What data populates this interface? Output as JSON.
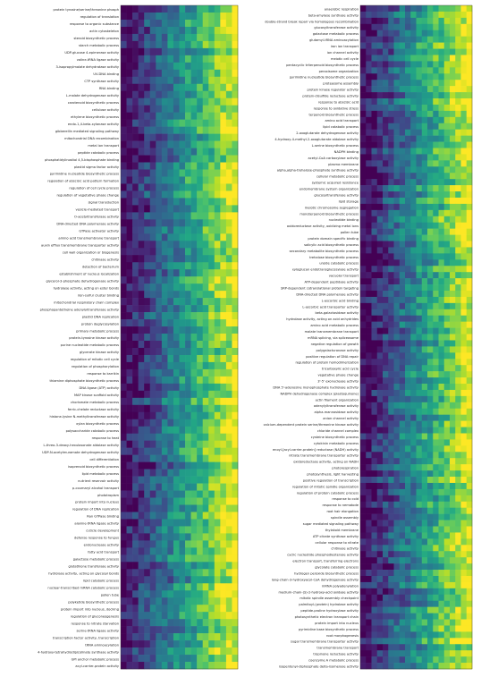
{
  "chart_data": [
    {
      "type": "heatmap",
      "title": "",
      "xlabel": "",
      "ylabel": "",
      "colormap": "viridis",
      "n_columns": 20,
      "rows": [
        "protein tyrosine/serine/threonine phosph",
        "regulation of translation",
        "response to organic substance",
        "actin cytoskeleton",
        "steroid biosynthetic process",
        "starch metabolic process",
        "UDP-glucose 4-epimerase activity",
        "valine-tRNA ligase activity",
        "3-isopropylmalate dehydratase activity",
        "UV-DNA binding",
        "CTP synthase activity",
        "RNA binding",
        "L-malate dehydrogenase activity",
        "carotenoid biosynthetic process",
        "cellulose activity",
        "ethylene biosynthetic process",
        "endo-1,4-beta-xylanase activity",
        "gibberellin mediated signaling pathway",
        "mitochondrial DNA recombination",
        "metal ion transport",
        "peptide catabolic process",
        "phosphatidylinositol 4,5-bisphosphate binding",
        "plastid sigma factor activity",
        "pyrimidine nucleotide biosynthetic process",
        "regulation of abscisic acid pattern formation",
        "regulation of cell cycle process",
        "regulation of vegetative phase change",
        "signal transduction",
        "vesicle-mediated transport",
        "O-acetyltransferase activity",
        "DNA-directed DNA polymerase activity",
        "GTPase activator activity",
        "amino acid transmembrane transport",
        "auxin efflux transmembrane transporter activity",
        "cell wall organization or biogenesis",
        "chitinase activity",
        "detection of bacterium",
        "establishment of nucleus localization",
        "glycerol-3-phosphate dehydrogenase activity",
        "hydrolase activity, acting on ester bonds",
        "iron-sulfur cluster binding",
        "mitochondrial respiratory chain complex",
        "phosphopantetheine adenylyltransferase activity",
        "plastid DNA replication",
        "protein deglycosylation",
        "primary metabolic process",
        "protein-tyrosine kinase activity",
        "purine nucleotide metabolic process",
        "glycerate kinase activity",
        "regulation of mitotic cell cycle",
        "regulation of phosphorylation",
        "response to karrikin",
        "thiamine diphosphate biosynthetic process",
        "DNA ligase (ATP) activity",
        "MAP kinase scaffold activity",
        "chorismate metabolic process",
        "ferric-chelate reductase activity",
        "histone-lysine N-methyltransferase activity",
        "xylan biosynthetic process",
        "polysaccharide catabolic process",
        "response to heat",
        "L-threo-3-deoxy-hexulosonate aldolase activity",
        "UDP-N-acetylmuramate dehydrogenase activity",
        "cell differentiation",
        "isoprenoid biosynthetic process",
        "lipid metabolic process",
        "nutrient reservoir activity",
        "p-coumaryl alcohol transport",
        "phototropism",
        "protein import into nucleus",
        "regulation of DNA replication",
        "Ran GTPase binding",
        "alanine-tRNA ligase activity",
        "cuticle development",
        "defense response to fungus",
        "endonuclease activity",
        "fatty acid transport",
        "galactose metabolic process",
        "glutathione transferase activity",
        "hydrolase activity, acting on glycosyl bonds",
        "lipid catabolic process",
        "nuclear-transcribed mRNA catabolic process",
        "pollen tube",
        "polyketide biosynthetic process",
        "protein import into nucleus, docking",
        "regulation of gluconeogenesis",
        "response to nitrate starvation",
        "serine-tRNA ligase activity",
        "transcription factor activity, transcription",
        "tRNA aminoacylation",
        "4-hydroxy-tetrahydrodipicolinate synthase activity",
        "GPI anchor metabolic process",
        "acyl-carrier-protein activity"
      ]
    },
    {
      "type": "heatmap",
      "title": "",
      "xlabel": "",
      "ylabel": "",
      "colormap": "viridis",
      "n_columns": 20,
      "rows": [
        "anaerobic respiration",
        "beta-amylase synthase activity",
        "double-strand break repair via homologous recombination",
        "glucosyltransferase activity",
        "galactose metabolic process",
        "glutamyl-tRNA aminoacylation",
        "iron ion transport",
        "ion channel activity",
        "meiotic cell cycle",
        "pentacyclic triterpenoid biosynthetic process",
        "peroxisome organization",
        "pyrimidine nucleotide biosynthetic process",
        "proteasome assembly",
        "protein kinase regulator activity",
        "protein-disulfide reductase activity",
        "response to abscisic acid",
        "response to oxidative stress",
        "terpenoid biosynthetic process",
        "amino acid transport",
        "lipid catabolic process",
        "2-oxoglutarate dehydrogenase activity",
        "4-hydroxy-4-methyl-2-oxoglutarate aldolase activity",
        "L-serine biosynthetic process",
        "NADPH binding",
        "acetyl-CoA carboxylase activity",
        "plasma membrane",
        "alpha,alpha-trehalose-phosphate synthase activity",
        "cellular metabolic process",
        "systemic acquired resistance",
        "endomembrane system organization",
        "glucosyltransferase activity",
        "lipid storage",
        "meiotic chromosome segregation",
        "monoterpenoid biosynthetic process",
        "nucleotide binding",
        "oxidoreductase activity, oxidizing metal ions",
        "pollen tube",
        "protein domain specific binding",
        "salicylic acid biosynthetic process",
        "secondary metabolite biosynthetic process",
        "trehalose biosynthetic process",
        "ureide catabolic process",
        "xyloglucan endotransglucosylase activity",
        "vacuolar transport",
        "ATP-dependent peptidase activity",
        "SRP-dependent cotranslational protein targeting",
        "DNA-directed DNA polymerase activity",
        "L-ascorbic acid binding",
        "L-ascorbic acid transporter activity",
        "beta-galactosidase activity",
        "hydrolase activity, acting on acid anhydrides",
        "amino acid metabolic process",
        "malate transmembrane transport",
        "mRNA splicing, via spliceosome",
        "negative regulation of growth",
        "polygalacturonase activity",
        "positive regulation of DNA repair",
        "regulation of protein homodimerization",
        "tricarboxylic acid cycle",
        "vegetative phase change",
        "3'-5' exonuclease activity",
        "DNA 5'-adenosine monophosphate hydrolase activity",
        "NADPH dehydrogenase complex (plastoquinone)",
        "actin filament organization",
        "adenylyltransferase activity",
        "alpha-mannosidase activity",
        "anion channel activity",
        "calcium-dependent protein serine/threonine kinase activity",
        "chloride channel complex",
        "cysteine biosynthetic process",
        "cytokinin metabolic process",
        "enoyl-[acyl-carrier-protein] reductase (NADH) activity",
        "nitrate transmembrane transporter activity",
        "oxidoreductase activity, acting on NADH",
        "photorespiration",
        "photosynthesis, light harvesting",
        "positive regulation of transcription",
        "regulation of mitotic spindle organization",
        "regulation of protein catabolic process",
        "response to cold",
        "response to nematode",
        "root hair elongation",
        "spindle assembly",
        "sugar mediated signaling pathway",
        "thylakoid membrane",
        "ATP citrate synthase activity",
        "cellular response to nitrate",
        "chitinase activity",
        "cyclic nucleotide phosphodiesterase activity",
        "electron transport, transferring electrons",
        "glycolate catabolic process",
        "hydrogen peroxide biosynthetic process",
        "long-chain-3-hydroxyacyl-CoA dehydrogenase activity",
        "mRNA polyadenylation",
        "medium-chain-(S)-2-hydroxy-acid oxidase activity",
        "mitotic spindle assembly checkpoint",
        "palmitoyl-(protein) hydrolase activity",
        "peptide-proline hydroxylase activity",
        "photosynthetic electron transport chain",
        "protein import into nucleus",
        "pyrimidine base biosynthetic process",
        "root morphogenesis",
        "sugar transmembrane transporter activity",
        "transmembrane transport",
        "tropinone reductase activity",
        "coenzyme A metabolic process",
        "isopentenyl-diphosphate delta-isomerase activity"
      ]
    }
  ]
}
